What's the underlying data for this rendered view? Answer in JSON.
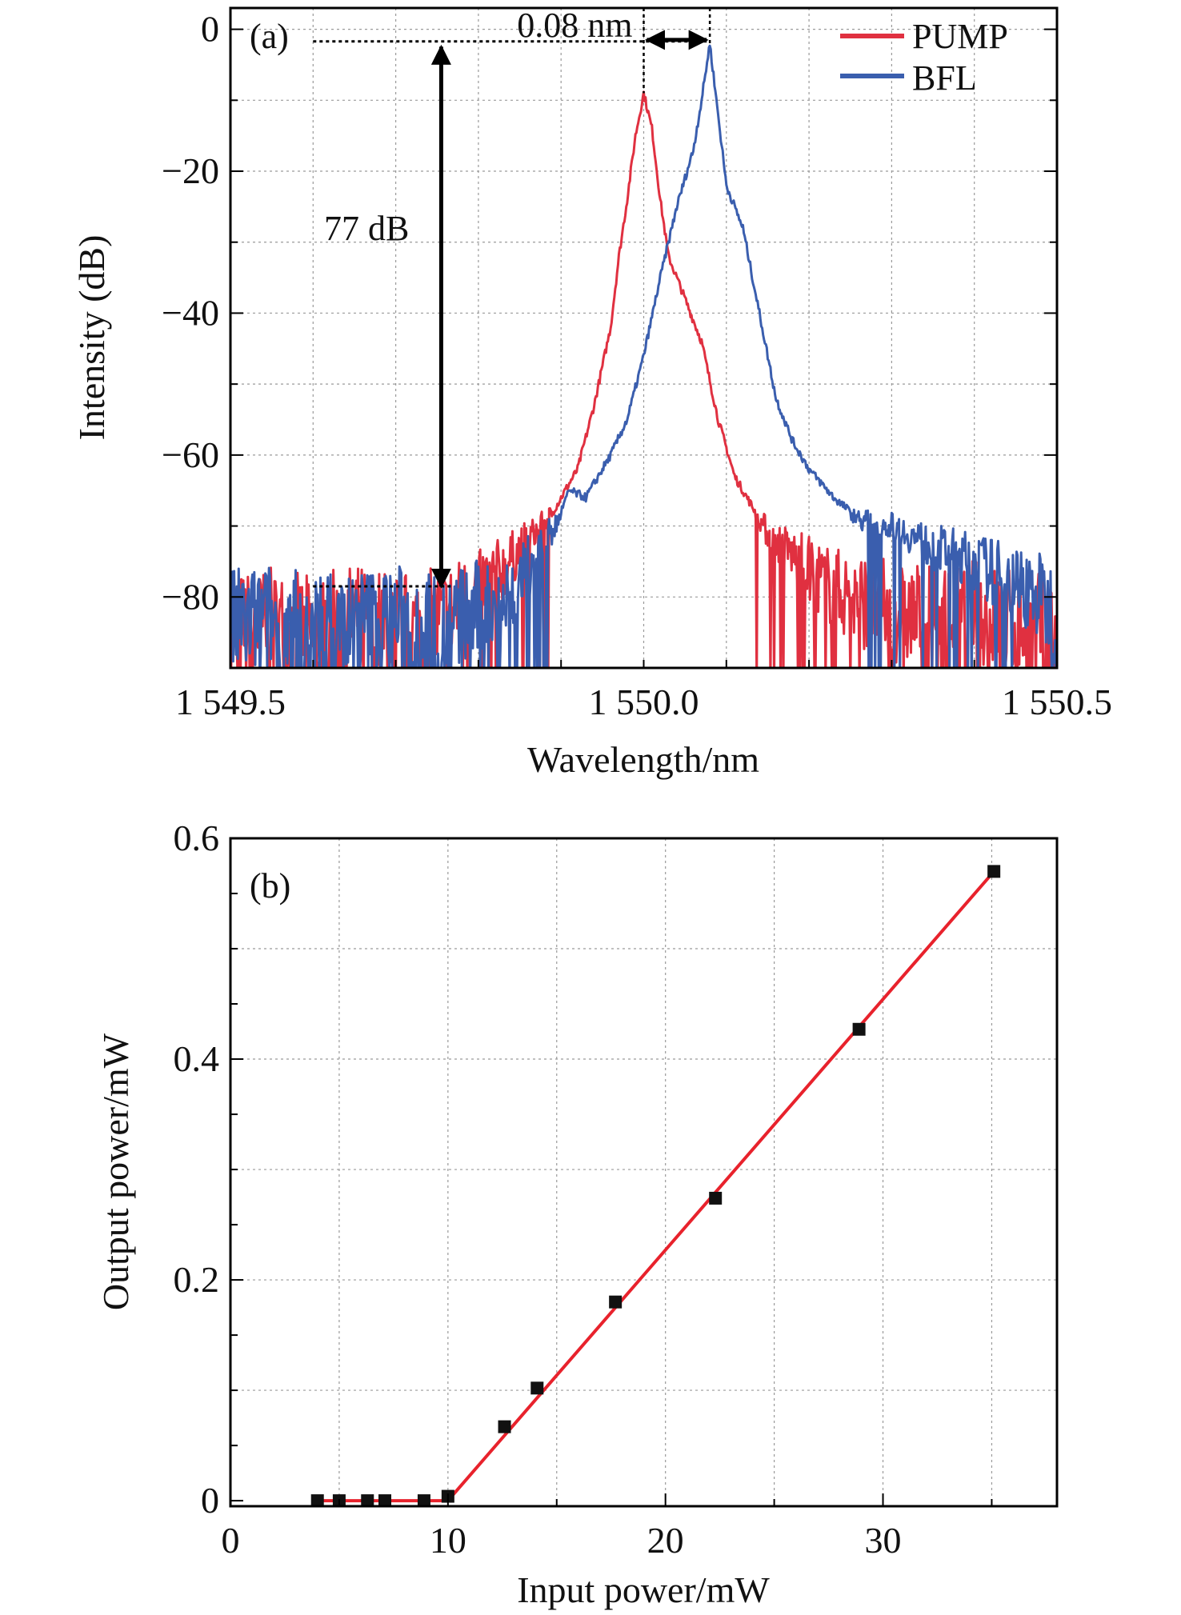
{
  "colors": {
    "pump": "#e03040",
    "bfl": "#3a5eae",
    "fit_line": "#e8222c",
    "marker": "#111111",
    "grid": "#9a9a9a",
    "axis": "#000000"
  },
  "chart_data": [
    {
      "type": "line",
      "panel_label": "(a)",
      "xlabel": "Wavelength/nm",
      "ylabel": "Intensity (dB)",
      "xlim": [
        1549.5,
        1550.5
      ],
      "ylim": [
        -90,
        3
      ],
      "xticks": [
        1549.5,
        1550.0,
        1550.5
      ],
      "xtick_labels": [
        "1 549.5",
        "1 550.0",
        "1 550.5"
      ],
      "yticks": [
        0,
        -20,
        -40,
        -60,
        -80
      ],
      "ytick_labels": [
        "0",
        "−20",
        "−40",
        "−60",
        "−80"
      ],
      "grid": true,
      "legend_position": "top-right",
      "annotations": [
        {
          "text": "0.08 nm",
          "kind": "horizontal-double-arrow",
          "x_from": 1550.0,
          "x_to": 1550.08,
          "y": 0.5
        },
        {
          "text": "77 dB",
          "kind": "vertical-double-arrow",
          "x": 1549.755,
          "y_from": -2,
          "y_to": -79
        }
      ],
      "series": [
        {
          "name": "PUMP",
          "color": "#e03040",
          "peak": {
            "x": 1550.0,
            "y": -9
          },
          "x": [
            1549.5,
            1549.55,
            1549.6,
            1549.65,
            1549.7,
            1549.75,
            1549.78,
            1549.8,
            1549.83,
            1549.86,
            1549.89,
            1549.92,
            1549.94,
            1549.96,
            1549.97,
            1549.98,
            1549.99,
            1550.0,
            1550.01,
            1550.02,
            1550.03,
            1550.05,
            1550.07,
            1550.09,
            1550.11,
            1550.13,
            1550.15,
            1550.18,
            1550.2,
            1550.22,
            1550.25,
            1550.3,
            1550.35,
            1550.4,
            1550.45,
            1550.5
          ],
          "y": [
            -85,
            -84,
            -86,
            -83,
            -85,
            -84,
            -81,
            -79,
            -76,
            -72,
            -68,
            -62,
            -53,
            -42,
            -32,
            -24,
            -15,
            -9,
            -14,
            -24,
            -32,
            -38,
            -44,
            -55,
            -63,
            -67,
            -71,
            -74,
            -76,
            -78,
            -80,
            -82,
            -83,
            -82,
            -84,
            -85
          ]
        },
        {
          "name": "BFL",
          "color": "#3a5eae",
          "peak": {
            "x": 1550.08,
            "y": -2
          },
          "x": [
            1549.5,
            1549.55,
            1549.6,
            1549.65,
            1549.7,
            1549.75,
            1549.8,
            1549.84,
            1549.87,
            1549.89,
            1549.91,
            1549.93,
            1549.96,
            1549.98,
            1550.0,
            1550.02,
            1550.04,
            1550.06,
            1550.07,
            1550.08,
            1550.09,
            1550.1,
            1550.12,
            1550.14,
            1550.16,
            1550.18,
            1550.2,
            1550.23,
            1550.26,
            1550.3,
            1550.35,
            1550.4,
            1550.43,
            1550.45,
            1550.48,
            1550.5
          ],
          "y": [
            -84,
            -83,
            -85,
            -84,
            -83,
            -85,
            -82,
            -80,
            -74,
            -71,
            -65,
            -66,
            -60,
            -55,
            -46,
            -35,
            -25,
            -17,
            -10,
            -2,
            -12,
            -22,
            -28,
            -40,
            -52,
            -58,
            -62,
            -66,
            -69,
            -70,
            -73,
            -75,
            -77,
            -78,
            -80,
            -83
          ]
        }
      ]
    },
    {
      "type": "line",
      "panel_label": "(b)",
      "xlabel": "Input power/mW",
      "ylabel": "Output power/mW",
      "xlim": [
        0,
        38
      ],
      "ylim": [
        -0.005,
        0.6
      ],
      "xticks": [
        0,
        10,
        20,
        30
      ],
      "xtick_labels": [
        "0",
        "10",
        "20",
        "30"
      ],
      "yticks": [
        0,
        0.2,
        0.4,
        0.6
      ],
      "ytick_labels": [
        "0",
        "0.2",
        "0.4",
        "0.6"
      ],
      "grid": true,
      "series": [
        {
          "type": "scatter",
          "color": "#111111",
          "x": [
            4.0,
            5.0,
            6.3,
            7.1,
            8.9,
            10.0,
            12.6,
            14.1,
            17.7,
            22.3,
            28.9,
            35.1
          ],
          "y": [
            0.0,
            0.0,
            0.0,
            0.0,
            0.0,
            0.004,
            0.067,
            0.102,
            0.18,
            0.274,
            0.427,
            0.57
          ]
        },
        {
          "type": "line",
          "color": "#e8222c",
          "x": [
            4.0,
            10.0,
            35.1
          ],
          "y": [
            0.0,
            0.0,
            0.57
          ]
        }
      ]
    }
  ]
}
